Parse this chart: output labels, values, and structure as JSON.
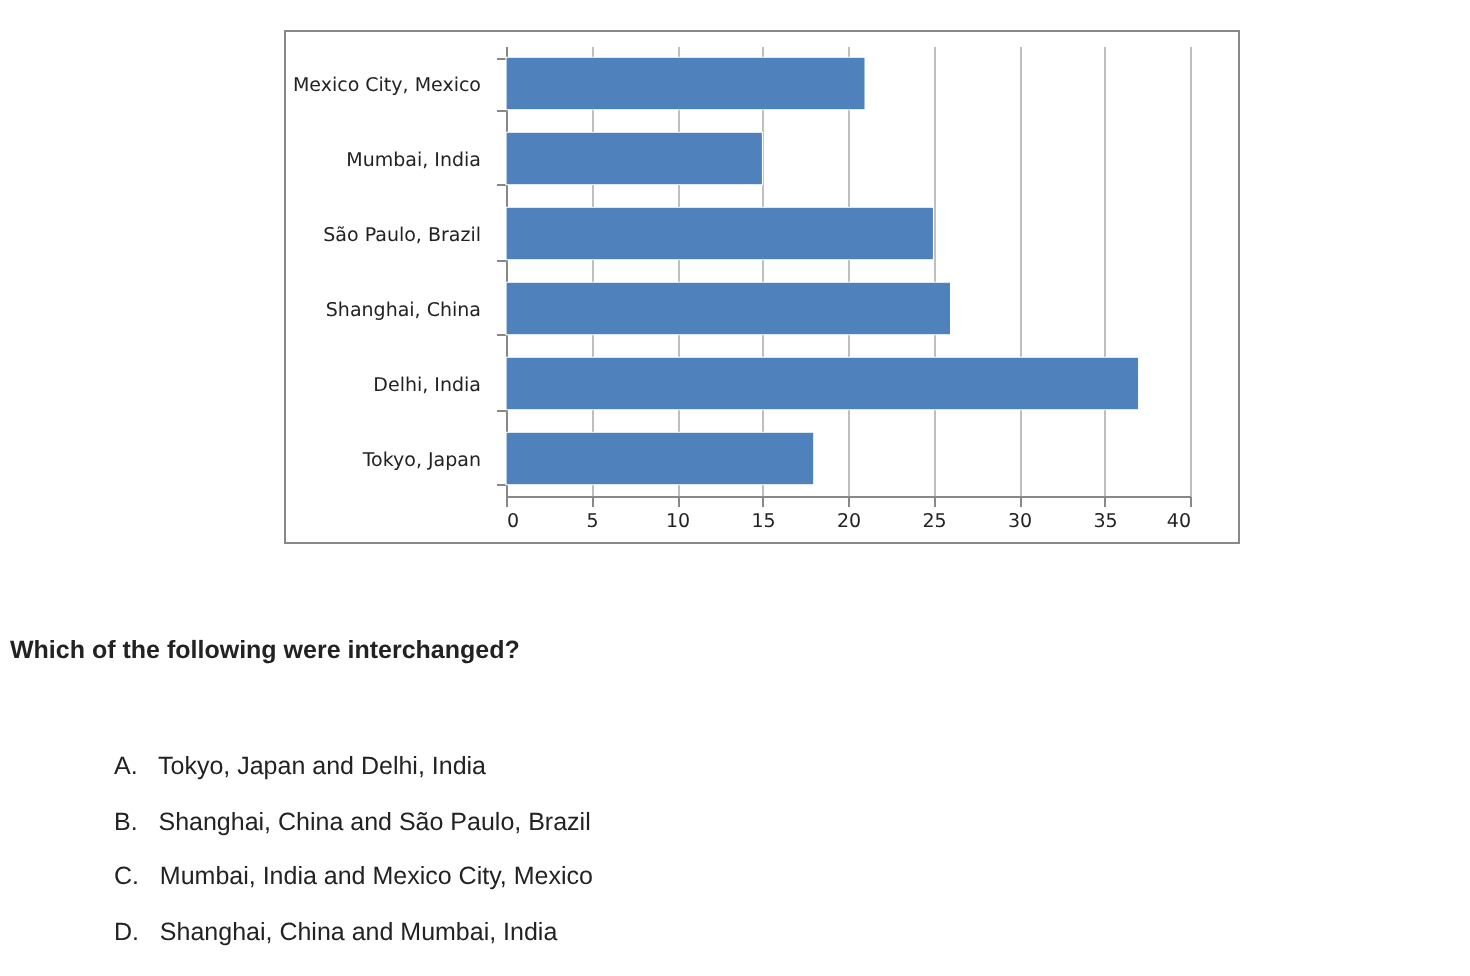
{
  "chart_data": {
    "type": "bar",
    "orientation": "horizontal",
    "categories": [
      "Mexico City, Mexico",
      "Mumbai, India",
      "São Paulo, Brazil",
      "Shanghai, China",
      "Delhi, India",
      "Tokyo, Japan"
    ],
    "values": [
      21,
      15,
      25,
      26,
      37,
      18
    ],
    "color": "#4f81bd",
    "xlim": [
      0,
      40
    ],
    "xticks": [
      0,
      5,
      10,
      15,
      20,
      25,
      30,
      35,
      40
    ],
    "grid": "x",
    "annotations": [
      "Which of the following were interchanged?",
      "A.   Tokyo, Japan and Delhi, India",
      "B.   Shanghai, China and São Paulo, Brazil",
      "C.   Mumbai, India and Mexico City, Mexico",
      "D.   Shanghai, China and Mumbai, India"
    ]
  }
}
